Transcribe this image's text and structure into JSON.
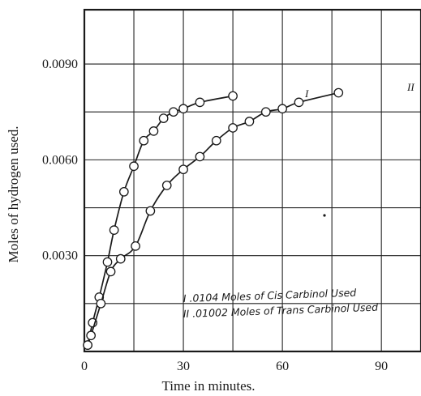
{
  "chart_data": {
    "type": "line",
    "title": "",
    "xlabel": "Time in minutes.",
    "ylabel": "Moles of hydrogen used.",
    "xlim": [
      0,
      102
    ],
    "ylim": [
      0,
      0.0107
    ],
    "grid": true,
    "x_ticks": [
      {
        "value": 0,
        "label": "0"
      },
      {
        "value": 30,
        "label": "30"
      },
      {
        "value": 60,
        "label": "60"
      },
      {
        "value": 90,
        "label": "90"
      }
    ],
    "y_ticks": [
      {
        "value": 0.003,
        "label": "0.0030"
      },
      {
        "value": 0.006,
        "label": "0.0060"
      },
      {
        "value": 0.009,
        "label": "0.0090"
      }
    ],
    "x_gridlines": [
      15,
      30,
      45,
      60,
      75,
      90
    ],
    "y_gridlines": [
      0.0015,
      0.003,
      0.0045,
      0.006,
      0.0075,
      0.009
    ],
    "series": [
      {
        "name": "I",
        "points": [
          [
            1,
            0.0002
          ],
          [
            2.5,
            0.0009
          ],
          [
            4.5,
            0.0017
          ],
          [
            7,
            0.0028
          ],
          [
            9,
            0.0038
          ],
          [
            12,
            0.005
          ],
          [
            15,
            0.0058
          ],
          [
            18,
            0.0066
          ],
          [
            21,
            0.0069
          ],
          [
            24,
            0.0073
          ],
          [
            27,
            0.0075
          ],
          [
            30,
            0.0076
          ],
          [
            35,
            0.0078
          ],
          [
            45,
            0.008
          ]
        ]
      },
      {
        "name": "II",
        "points": [
          [
            1,
            0.0002
          ],
          [
            2,
            0.0005
          ],
          [
            5,
            0.0015
          ],
          [
            8,
            0.0025
          ],
          [
            11,
            0.0029
          ],
          [
            15.5,
            0.0033
          ],
          [
            20,
            0.0044
          ],
          [
            25,
            0.0052
          ],
          [
            30,
            0.0057
          ],
          [
            35,
            0.0061
          ],
          [
            40,
            0.0066
          ],
          [
            45,
            0.007
          ],
          [
            50,
            0.0072
          ],
          [
            55,
            0.0075
          ],
          [
            60,
            0.0076
          ],
          [
            65,
            0.0078
          ],
          [
            77,
            0.0081
          ]
        ]
      }
    ],
    "annotations": [
      "I .0104 Moles of Cis Carbinol Used",
      "II .01002 Moles of Trans Carbinol Used"
    ]
  }
}
